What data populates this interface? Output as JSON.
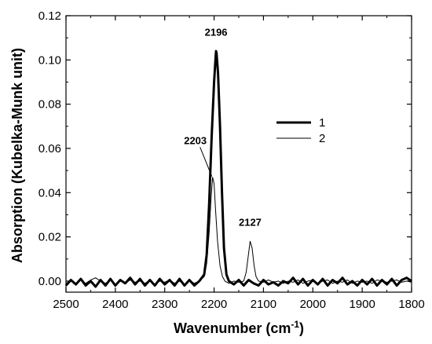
{
  "chart_data": {
    "type": "line",
    "title": "",
    "xlabel": "Wavenumber (cm",
    "xlabel_superscript": "-1",
    "xlabel_suffix": ")",
    "ylabel": "Absorption (Kubelka-Munk unit)",
    "xlim": [
      2500,
      1800
    ],
    "ylim": [
      -0.005,
      0.12
    ],
    "x_reversed": true,
    "x_ticks": [
      "2500",
      "2400",
      "2300",
      "2200",
      "2100",
      "2000",
      "1900",
      "1800"
    ],
    "y_ticks": [
      "0.00",
      "0.02",
      "0.04",
      "0.06",
      "0.08",
      "0.10",
      "0.12"
    ],
    "grid": false,
    "legend_position": "right",
    "series": [
      {
        "name": "1",
        "stroke_width": 3,
        "color": "#000000",
        "x": [
          2500,
          2490,
          2480,
          2470,
          2460,
          2450,
          2440,
          2430,
          2420,
          2410,
          2400,
          2390,
          2380,
          2370,
          2360,
          2350,
          2340,
          2330,
          2320,
          2310,
          2300,
          2290,
          2280,
          2270,
          2260,
          2250,
          2240,
          2230,
          2220,
          2215,
          2210,
          2205,
          2200,
          2197,
          2196,
          2195,
          2192,
          2188,
          2184,
          2180,
          2175,
          2170,
          2160,
          2150,
          2140,
          2130,
          2120,
          2110,
          2100,
          2090,
          2080,
          2070,
          2060,
          2050,
          2040,
          2030,
          2020,
          2010,
          2000,
          1990,
          1980,
          1970,
          1960,
          1950,
          1940,
          1930,
          1920,
          1910,
          1900,
          1890,
          1880,
          1870,
          1860,
          1850,
          1840,
          1830,
          1820,
          1810,
          1800
        ],
        "y": [
          -0.002,
          0.0005,
          -0.0015,
          0.001,
          -0.002,
          0.0,
          -0.0025,
          0.0005,
          -0.002,
          0.001,
          -0.002,
          0.0005,
          -0.001,
          0.0015,
          -0.0015,
          0.001,
          -0.002,
          0.0005,
          -0.002,
          0.001,
          -0.0015,
          0.0005,
          -0.002,
          0.001,
          -0.002,
          0.0005,
          -0.002,
          0.0,
          0.003,
          0.012,
          0.035,
          0.065,
          0.09,
          0.101,
          0.104,
          0.103,
          0.094,
          0.07,
          0.04,
          0.015,
          0.003,
          0.0,
          -0.0015,
          0.0005,
          -0.002,
          0.0005,
          -0.001,
          -0.002,
          0.0005,
          -0.0015,
          -0.0005,
          -0.002,
          0.0,
          -0.001,
          0.0015,
          -0.0015,
          0.001,
          -0.002,
          0.0005,
          -0.0015,
          0.001,
          -0.002,
          0.0005,
          -0.001,
          0.0015,
          -0.0015,
          0.0,
          -0.002,
          0.0005,
          -0.0015,
          0.001,
          -0.002,
          0.0005,
          -0.0015,
          0.001,
          -0.002,
          0.0005,
          0.0015,
          0.0
        ]
      },
      {
        "name": "2",
        "stroke_width": 1,
        "color": "#000000",
        "x": [
          2500,
          2490,
          2480,
          2470,
          2460,
          2450,
          2440,
          2430,
          2420,
          2410,
          2400,
          2390,
          2380,
          2370,
          2360,
          2350,
          2340,
          2330,
          2320,
          2310,
          2300,
          2290,
          2280,
          2270,
          2260,
          2250,
          2240,
          2230,
          2220,
          2215,
          2210,
          2206,
          2203,
          2200,
          2197,
          2193,
          2188,
          2183,
          2178,
          2170,
          2160,
          2150,
          2140,
          2135,
          2131,
          2127,
          2123,
          2119,
          2115,
          2110,
          2100,
          2090,
          2080,
          2070,
          2060,
          2050,
          2040,
          2030,
          2020,
          2010,
          2000,
          1990,
          1980,
          1970,
          1960,
          1950,
          1940,
          1930,
          1920,
          1910,
          1900,
          1890,
          1880,
          1870,
          1860,
          1850,
          1840,
          1830,
          1820,
          1810,
          1800
        ],
        "y": [
          -0.001,
          0.0,
          -0.0015,
          0.0005,
          -0.001,
          0.0005,
          0.0015,
          0.0,
          -0.001,
          0.0005,
          -0.0015,
          0.0,
          -0.001,
          0.0005,
          -0.0005,
          0.0,
          -0.001,
          0.0005,
          -0.0015,
          0.0,
          -0.0005,
          0.0005,
          -0.001,
          0.0,
          -0.0015,
          0.0005,
          -0.001,
          0.0,
          0.002,
          0.008,
          0.022,
          0.038,
          0.047,
          0.044,
          0.032,
          0.018,
          0.007,
          0.002,
          0.0,
          -0.001,
          0.0,
          -0.0005,
          0.0,
          0.004,
          0.011,
          0.018,
          0.015,
          0.007,
          0.002,
          0.0,
          -0.0005,
          0.0005,
          -0.0005,
          0.0,
          -0.001,
          0.0,
          -0.0005,
          0.0005,
          -0.001,
          0.0,
          0.0005,
          -0.001,
          0.0,
          0.0005,
          -0.001,
          0.0,
          -0.0005,
          0.0005,
          -0.001,
          0.0,
          -0.0005,
          0.0,
          -0.001,
          0.0005,
          0.0,
          -0.0005,
          0.0,
          0.0005,
          -0.0005,
          0.0,
          -0.0005
        ]
      }
    ],
    "annotations": [
      {
        "text": "2196",
        "x": 2196,
        "y": 0.104,
        "label_x": 2196,
        "label_y": 0.111
      },
      {
        "text": "2203",
        "x": 2203,
        "y": 0.047,
        "label_x": 2238,
        "label_y": 0.062,
        "leader": true
      },
      {
        "text": "2127",
        "x": 2127,
        "y": 0.018,
        "label_x": 2127,
        "label_y": 0.025
      }
    ]
  }
}
